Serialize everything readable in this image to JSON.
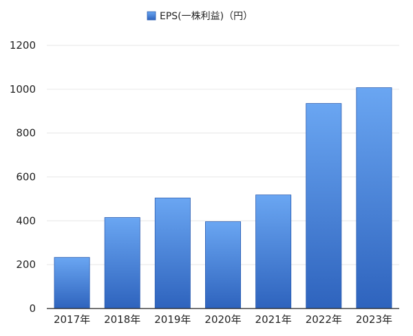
{
  "chart_data": {
    "type": "bar",
    "categories": [
      "2017年",
      "2018年",
      "2019年",
      "2020年",
      "2021年",
      "2022年",
      "2023年"
    ],
    "series": [
      {
        "name": "EPS(一株利益)（円）",
        "values": [
          233,
          415,
          504,
          396,
          518,
          935,
          1007
        ]
      }
    ],
    "title": "",
    "xlabel": "",
    "ylabel": "",
    "ylim": [
      0,
      1200
    ],
    "yticks": [
      0,
      200,
      400,
      600,
      800,
      1000,
      1200
    ],
    "grid": true,
    "legend": "top-center",
    "colors": {
      "bar_top": "#6aa6f2",
      "bar_bottom": "#2e63bd",
      "bar_border": "#2a5cb0",
      "grid": "#e6e6e6",
      "axis": "#222222"
    }
  }
}
